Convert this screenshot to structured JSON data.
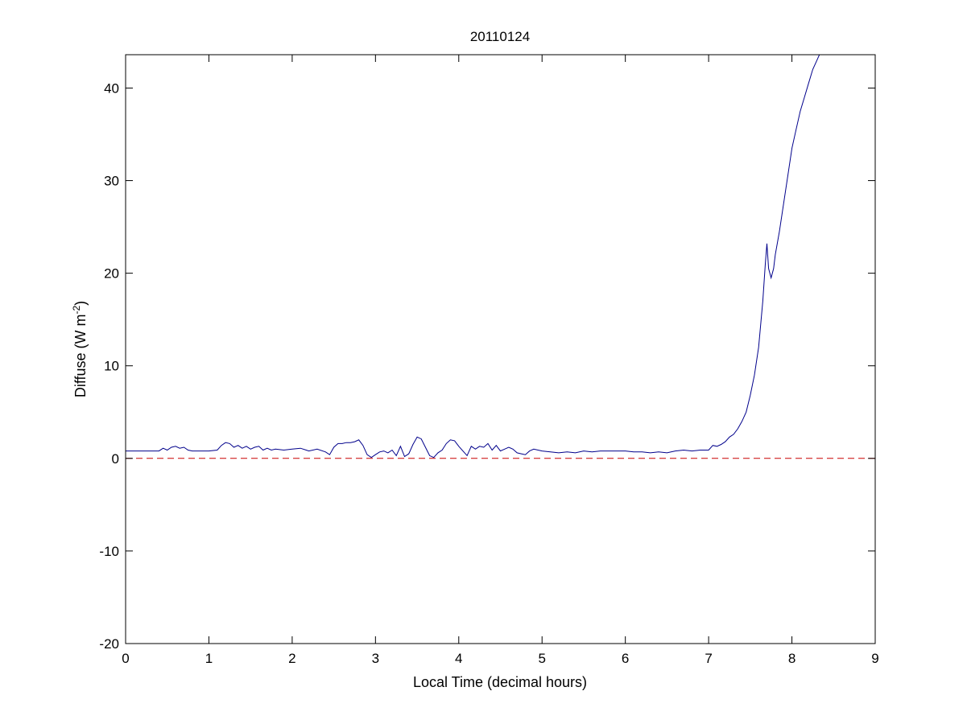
{
  "chart_data": {
    "type": "line",
    "title": "20110124",
    "xlabel": "Local Time (decimal hours)",
    "ylabel": "Diffuse (W m-2)",
    "ylabel_parts": {
      "main": "Diffuse (W m",
      "exponent": "-2",
      "close": ")"
    },
    "xlim": [
      0,
      9
    ],
    "ylim": [
      -20,
      43.6
    ],
    "xticks": [
      0,
      1,
      2,
      3,
      4,
      5,
      6,
      7,
      8,
      9
    ],
    "yticks": [
      -20,
      -10,
      0,
      10,
      20,
      30,
      40
    ],
    "xtick_labels": [
      "0",
      "1",
      "2",
      "3",
      "4",
      "5",
      "6",
      "7",
      "8",
      "9"
    ],
    "ytick_labels": [
      "-20",
      "-10",
      "0",
      "10",
      "20",
      "30",
      "40"
    ],
    "grid": false,
    "series": [
      {
        "color": "#00008B",
        "style": "solid",
        "x": [
          0,
          0.2,
          0.4,
          0.45,
          0.5,
          0.55,
          0.6,
          0.65,
          0.7,
          0.75,
          0.8,
          0.9,
          1.0,
          1.1,
          1.15,
          1.2,
          1.25,
          1.3,
          1.35,
          1.4,
          1.45,
          1.5,
          1.55,
          1.6,
          1.65,
          1.7,
          1.75,
          1.8,
          1.9,
          2.0,
          2.1,
          2.2,
          2.3,
          2.4,
          2.45,
          2.5,
          2.55,
          2.6,
          2.65,
          2.7,
          2.75,
          2.8,
          2.85,
          2.9,
          2.95,
          3.0,
          3.05,
          3.1,
          3.15,
          3.2,
          3.25,
          3.3,
          3.35,
          3.4,
          3.45,
          3.5,
          3.55,
          3.6,
          3.65,
          3.7,
          3.75,
          3.8,
          3.85,
          3.9,
          3.95,
          4.0,
          4.05,
          4.1,
          4.15,
          4.2,
          4.25,
          4.3,
          4.35,
          4.4,
          4.45,
          4.5,
          4.55,
          4.6,
          4.65,
          4.7,
          4.75,
          4.8,
          4.85,
          4.9,
          5.0,
          5.1,
          5.2,
          5.3,
          5.4,
          5.5,
          5.6,
          5.7,
          5.8,
          5.9,
          6.0,
          6.1,
          6.2,
          6.3,
          6.4,
          6.5,
          6.6,
          6.7,
          6.8,
          6.9,
          7.0,
          7.05,
          7.1,
          7.15,
          7.2,
          7.25,
          7.3,
          7.35,
          7.4,
          7.45,
          7.5,
          7.55,
          7.6,
          7.65,
          7.68,
          7.7,
          7.72,
          7.75,
          7.78,
          7.8,
          7.85,
          7.9,
          7.95,
          8.0,
          8.05,
          8.1,
          8.15,
          8.2,
          8.25,
          8.3,
          8.33
        ],
        "y": [
          0.8,
          0.8,
          0.8,
          1.1,
          0.9,
          1.2,
          1.3,
          1.1,
          1.2,
          0.9,
          0.8,
          0.8,
          0.8,
          0.9,
          1.4,
          1.7,
          1.6,
          1.2,
          1.4,
          1.1,
          1.3,
          1.0,
          1.2,
          1.3,
          0.9,
          1.1,
          0.9,
          1.0,
          0.9,
          1.0,
          1.1,
          0.8,
          1.0,
          0.7,
          0.4,
          1.2,
          1.6,
          1.6,
          1.7,
          1.7,
          1.8,
          2.0,
          1.4,
          0.4,
          0.1,
          0.4,
          0.7,
          0.8,
          0.6,
          0.9,
          0.3,
          1.3,
          0.2,
          0.5,
          1.5,
          2.3,
          2.1,
          1.2,
          0.3,
          0.1,
          0.6,
          0.9,
          1.6,
          2.0,
          1.9,
          1.3,
          0.8,
          0.3,
          1.3,
          1.0,
          1.3,
          1.2,
          1.6,
          0.9,
          1.4,
          0.8,
          1.0,
          1.2,
          1.0,
          0.6,
          0.5,
          0.4,
          0.8,
          1.0,
          0.8,
          0.7,
          0.6,
          0.7,
          0.6,
          0.8,
          0.7,
          0.8,
          0.8,
          0.8,
          0.8,
          0.7,
          0.7,
          0.6,
          0.7,
          0.6,
          0.8,
          0.9,
          0.8,
          0.9,
          0.9,
          1.4,
          1.3,
          1.5,
          1.8,
          2.3,
          2.6,
          3.2,
          4.0,
          5.0,
          6.8,
          9.0,
          12.0,
          17.0,
          21.0,
          23.2,
          20.5,
          19.5,
          20.5,
          22.0,
          24.5,
          27.5,
          30.5,
          33.5,
          35.5,
          37.5,
          39.0,
          40.5,
          42.0,
          43.0,
          43.6
        ]
      },
      {
        "color": "#C80000",
        "style": "dashed",
        "x": [
          0,
          9
        ],
        "y": [
          0,
          0
        ]
      }
    ]
  }
}
